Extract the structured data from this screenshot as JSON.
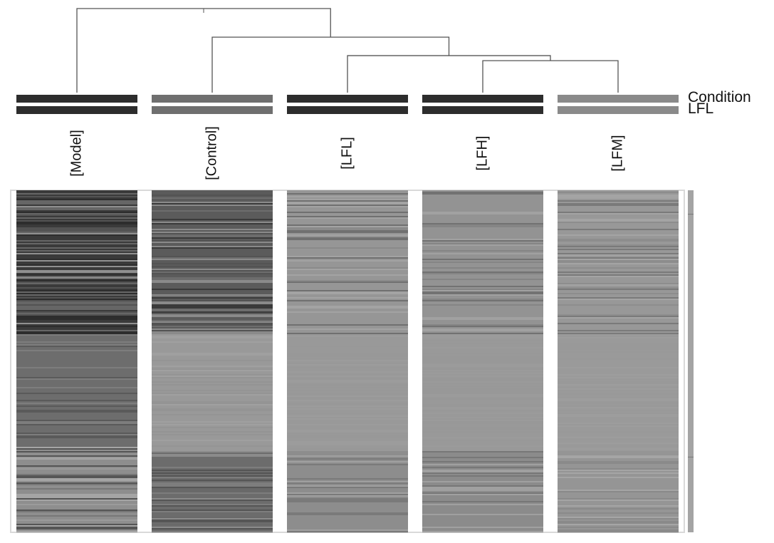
{
  "chart_data": {
    "type": "heatmap",
    "palette": [
      "#2d2d2d",
      "#535353",
      "#666666",
      "#7d7d7d",
      "#969696",
      "#a3a3a3",
      "#b0b0b0"
    ],
    "annotation_tracks": [
      {
        "label": "Condition",
        "colors": [
          "#2d2d2d",
          "#6f6f6f",
          "#2d2d2d",
          "#2d2d2d",
          "#8a8a8a"
        ]
      },
      {
        "label": "LFL",
        "colors": [
          "#2d2d2d",
          "#6f6f6f",
          "#2d2d2d",
          "#2d2d2d",
          "#8a8a8a"
        ]
      }
    ],
    "columns": [
      "[Model]",
      "[Control]",
      "[LFL]",
      "[LFH]",
      "[LFM]"
    ],
    "dendrogram": {
      "leaf_order": [
        "[Model]",
        "[Control]",
        "[LFL]",
        "[LFH]",
        "[LFM]"
      ],
      "merges": [
        {
          "left": 3,
          "right": 4,
          "height": 0.38
        },
        {
          "left": 2,
          "right": 5,
          "height": 0.44
        },
        {
          "left": 1,
          "right": 6,
          "height": 0.66
        },
        {
          "left": 0,
          "right": 7,
          "height": 1.0
        }
      ]
    },
    "column_profiles": [
      {
        "name": "[Model]",
        "segments": [
          {
            "start": 0.0,
            "end": 0.42,
            "base": "#3a3a3a",
            "variation": [
              "#2d2d2d",
              "#535353",
              "#666666",
              "#909090"
            ]
          },
          {
            "start": 0.42,
            "end": 0.75,
            "base": "#6d6d6d",
            "variation": [
              "#5a5a5a",
              "#6d6d6d",
              "#7d7d7d"
            ]
          },
          {
            "start": 0.75,
            "end": 1.0,
            "base": "#8e8e8e",
            "variation": [
              "#555555",
              "#777777",
              "#9b9b9b",
              "#a5a5a5"
            ]
          }
        ]
      },
      {
        "name": "[Control]",
        "segments": [
          {
            "start": 0.0,
            "end": 0.42,
            "base": "#5b5b5b",
            "variation": [
              "#3a3a3a",
              "#535353",
              "#6d6d6d",
              "#8a8a8a"
            ]
          },
          {
            "start": 0.42,
            "end": 0.76,
            "base": "#999999",
            "variation": [
              "#949494",
              "#999999",
              "#a0a0a0"
            ]
          },
          {
            "start": 0.76,
            "end": 1.0,
            "base": "#6c6c6c",
            "variation": [
              "#555555",
              "#696969",
              "#7d7d7d",
              "#8b8b8b"
            ]
          }
        ]
      },
      {
        "name": "[LFL]",
        "segments": [
          {
            "start": 0.0,
            "end": 0.42,
            "base": "#969696",
            "variation": [
              "#8a8a8a",
              "#969696",
              "#a3a3a3",
              "#707070"
            ]
          },
          {
            "start": 0.42,
            "end": 0.76,
            "base": "#999999",
            "variation": [
              "#989898",
              "#9c9c9c"
            ]
          },
          {
            "start": 0.76,
            "end": 1.0,
            "base": "#8d8d8d",
            "variation": [
              "#7a7a7a",
              "#8d8d8d",
              "#a0a0a0"
            ]
          }
        ]
      },
      {
        "name": "[LFH]",
        "segments": [
          {
            "start": 0.0,
            "end": 0.42,
            "base": "#939393",
            "variation": [
              "#858585",
              "#939393",
              "#a1a1a1",
              "#727272"
            ]
          },
          {
            "start": 0.42,
            "end": 0.76,
            "base": "#999999",
            "variation": [
              "#989898",
              "#9b9b9b"
            ]
          },
          {
            "start": 0.76,
            "end": 1.0,
            "base": "#8b8b8b",
            "variation": [
              "#777777",
              "#8b8b8b",
              "#a0a0a0"
            ]
          }
        ]
      },
      {
        "name": "[LFM]",
        "segments": [
          {
            "start": 0.0,
            "end": 0.42,
            "base": "#989898",
            "variation": [
              "#8d8d8d",
              "#989898",
              "#a4a4a4",
              "#7a7a7a"
            ]
          },
          {
            "start": 0.42,
            "end": 0.76,
            "base": "#9a9a9a",
            "variation": [
              "#999999",
              "#9d9d9d"
            ]
          },
          {
            "start": 0.76,
            "end": 1.0,
            "base": "#959595",
            "variation": [
              "#8a8a8a",
              "#959595",
              "#a5a5a5"
            ]
          }
        ]
      }
    ]
  }
}
